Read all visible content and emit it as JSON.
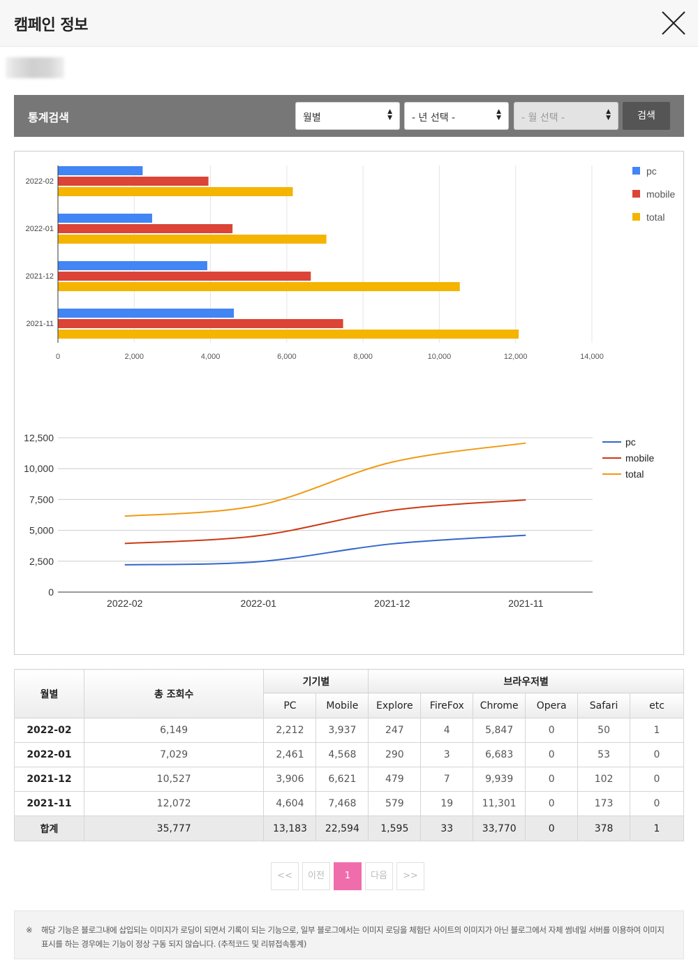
{
  "header": {
    "title": "캠페인 정보"
  },
  "search": {
    "title": "통계검색",
    "period_select": "월별",
    "year_select": "- 년 선택 -",
    "month_select": "- 월 선택 -",
    "button": "검색"
  },
  "colors": {
    "pc": "#4285f4",
    "mobile": "#db4437",
    "total": "#f4b400",
    "line_pc": "#3366cc",
    "line_mobile": "#cc3912",
    "line_total": "#f09911",
    "accent_page": "#f06dac"
  },
  "chart_data": [
    {
      "type": "bar",
      "orientation": "horizontal",
      "categories": [
        "2022-02",
        "2022-01",
        "2021-12",
        "2021-11"
      ],
      "series": [
        {
          "name": "pc",
          "values": [
            2212,
            2461,
            3906,
            4604
          ]
        },
        {
          "name": "mobile",
          "values": [
            3937,
            4568,
            6621,
            7468
          ]
        },
        {
          "name": "total",
          "values": [
            6149,
            7029,
            10527,
            12072
          ]
        }
      ],
      "xlim": [
        0,
        14000
      ],
      "xticks": [
        "0",
        "2,000",
        "4,000",
        "6,000",
        "8,000",
        "10,000",
        "12,000",
        "14,000"
      ],
      "grid": true,
      "legend": "top-right"
    },
    {
      "type": "line",
      "categories": [
        "2022-02",
        "2022-01",
        "2021-12",
        "2021-11"
      ],
      "series": [
        {
          "name": "pc",
          "values": [
            2212,
            2461,
            3906,
            4604
          ]
        },
        {
          "name": "mobile",
          "values": [
            3937,
            4568,
            6621,
            7468
          ]
        },
        {
          "name": "total",
          "values": [
            6149,
            7029,
            10527,
            12072
          ]
        }
      ],
      "ylim": [
        0,
        12500
      ],
      "yticks": [
        "0",
        "2,500",
        "5,000",
        "7,500",
        "10,000",
        "12,500"
      ],
      "grid": true,
      "legend": "top-right"
    }
  ],
  "table": {
    "headers": {
      "month": "월별",
      "total_views": "총 조회수",
      "device": "기기별",
      "browser": "브라우저별",
      "pc": "PC",
      "mobile": "Mobile",
      "explore": "Explore",
      "firefox": "FireFox",
      "chrome": "Chrome",
      "opera": "Opera",
      "safari": "Safari",
      "etc": "etc"
    },
    "rows": [
      [
        "2022-02",
        "6,149",
        "2,212",
        "3,937",
        "247",
        "4",
        "5,847",
        "0",
        "50",
        "1"
      ],
      [
        "2022-01",
        "7,029",
        "2,461",
        "4,568",
        "290",
        "3",
        "6,683",
        "0",
        "53",
        "0"
      ],
      [
        "2021-12",
        "10,527",
        "3,906",
        "6,621",
        "479",
        "7",
        "9,939",
        "0",
        "102",
        "0"
      ],
      [
        "2021-11",
        "12,072",
        "4,604",
        "7,468",
        "579",
        "19",
        "11,301",
        "0",
        "173",
        "0"
      ]
    ],
    "total": [
      "합계",
      "35,777",
      "13,183",
      "22,594",
      "1,595",
      "33",
      "33,770",
      "0",
      "378",
      "1"
    ]
  },
  "pagination": {
    "first": "<<",
    "prev": "이전",
    "current": "1",
    "next": "다음",
    "last": ">>"
  },
  "notice": {
    "mark": "※",
    "text": "해당 기능은 블로그내에 삽입되는 이미지가 로딩이 되면서 기록이 되는 기능으로, 일부 블로그에서는 이미지 로딩을 체험단 사이트의 이미지가 아닌 블로그에서 자체 썸네일 서버를 이용하여 이미지 표시를 하는 경우에는 기능이 정상 구동 되지 않습니다. (추적코드 및 리뷰접속통계)"
  }
}
